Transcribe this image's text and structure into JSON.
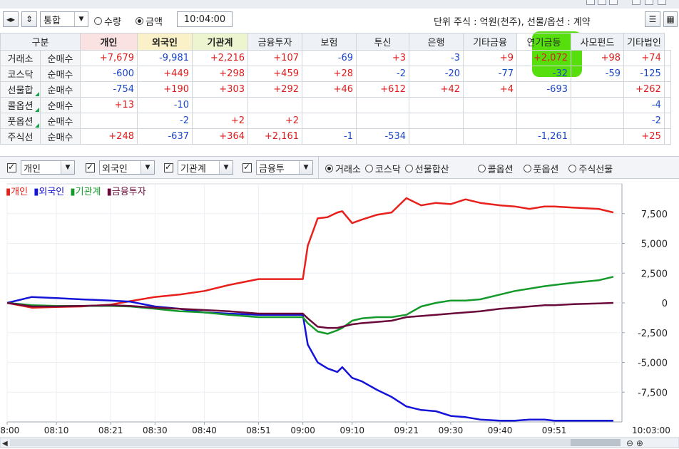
{
  "toolbar": {
    "market_select": "통합",
    "radio_quantity": "수량",
    "radio_amount": "금액",
    "time": "10:04:00",
    "unit_text": "단위 주식 : 억원(천주), 선물/옵션 : 계약"
  },
  "table": {
    "headers": [
      "구분",
      "개인",
      "외국인",
      "기관계",
      "금융투자",
      "보험",
      "투신",
      "은행",
      "기타금융",
      "연기금등",
      "사모펀드",
      "기타법인"
    ],
    "rows": [
      {
        "market": "거래소",
        "type": "순매수",
        "values": [
          "+7,679",
          "-9,981",
          "+2,216",
          "+107",
          "-69",
          "+3",
          "-3",
          "+9",
          "+2,072",
          "+98",
          "+74"
        ]
      },
      {
        "market": "코스닥",
        "type": "순매수",
        "values": [
          "-600",
          "+449",
          "+298",
          "+459",
          "+28",
          "-2",
          "-20",
          "-77",
          "-32",
          "-59",
          "-125"
        ]
      },
      {
        "market": "선물합",
        "type": "순매수",
        "values": [
          "-754",
          "+190",
          "+303",
          "+292",
          "+46",
          "+612",
          "+42",
          "+4",
          "-693",
          "",
          "+262"
        ]
      },
      {
        "market": "콜옵션",
        "type": "순매수",
        "values": [
          "+13",
          "-10",
          "",
          "",
          "",
          "",
          "",
          "",
          "",
          "",
          "-4"
        ]
      },
      {
        "market": "풋옵션",
        "type": "순매수",
        "values": [
          "",
          "-2",
          "+2",
          "+2",
          "",
          "",
          "",
          "",
          "",
          "",
          "-2"
        ]
      },
      {
        "market": "주식선",
        "type": "순매수",
        "values": [
          "+248",
          "-637",
          "+364",
          "+2,161",
          "-1",
          "-534",
          "",
          "",
          "-1,261",
          "",
          "+25"
        ]
      }
    ]
  },
  "filters": {
    "dropdowns": [
      "개인",
      "외국인",
      "기관계",
      "금융투"
    ],
    "radios": [
      "거래소",
      "코스닥",
      "선물합산",
      "콜옵션",
      "풋옵션",
      "주식선물"
    ]
  },
  "legend": [
    "개인",
    "외국인",
    "기관계",
    "금융투자"
  ],
  "colors": {
    "individual": "#e8201c",
    "foreign": "#1414d8",
    "institution": "#149a2a",
    "finance": "#6a0a3a",
    "highlight": "#4ddd00"
  },
  "chart_data": {
    "type": "line",
    "x": [
      "08:00",
      "08:05",
      "08:10",
      "08:15",
      "08:21",
      "08:25",
      "08:30",
      "08:35",
      "08:40",
      "08:45",
      "08:51",
      "08:55",
      "09:00",
      "09:01",
      "09:03",
      "09:05",
      "09:07",
      "09:08",
      "09:10",
      "09:12",
      "09:15",
      "09:18",
      "09:21",
      "09:24",
      "09:27",
      "09:30",
      "09:33",
      "09:36",
      "09:40",
      "09:43",
      "09:46",
      "09:49",
      "09:51",
      "09:55",
      "10:00",
      "10:03"
    ],
    "series": [
      {
        "name": "개인",
        "values": [
          0,
          -400,
          -350,
          -300,
          -150,
          150,
          500,
          700,
          1000,
          1500,
          2000,
          2000,
          2000,
          4800,
          7100,
          7200,
          7600,
          7700,
          6700,
          7000,
          7400,
          7600,
          8800,
          8200,
          8400,
          8300,
          8700,
          8400,
          8200,
          8100,
          7900,
          8100,
          8100,
          8000,
          7900,
          7600
        ]
      },
      {
        "name": "외국인",
        "values": [
          0,
          500,
          400,
          300,
          200,
          100,
          -300,
          -500,
          -800,
          -900,
          -1000,
          -1000,
          -1000,
          -3500,
          -5000,
          -5500,
          -5800,
          -5400,
          -6300,
          -6600,
          -7300,
          -7900,
          -8700,
          -9000,
          -9100,
          -9500,
          -9600,
          -9800,
          -9900,
          -9900,
          -9800,
          -9800,
          -9900,
          -9900,
          -9900,
          -9900
        ]
      },
      {
        "name": "기관계",
        "values": [
          0,
          -200,
          -250,
          -250,
          -250,
          -300,
          -500,
          -700,
          -800,
          -1000,
          -1200,
          -1200,
          -1200,
          -1700,
          -2400,
          -2600,
          -2300,
          -2100,
          -1500,
          -1300,
          -1200,
          -1200,
          -1000,
          -300,
          0,
          200,
          200,
          300,
          700,
          1000,
          1200,
          1400,
          1500,
          1700,
          1900,
          2200
        ]
      },
      {
        "name": "금융투자",
        "values": [
          0,
          -300,
          -300,
          -250,
          -200,
          -250,
          -400,
          -500,
          -600,
          -700,
          -900,
          -900,
          -900,
          -1300,
          -2000,
          -2100,
          -2100,
          -2000,
          -1800,
          -1700,
          -1600,
          -1500,
          -1200,
          -1100,
          -1000,
          -900,
          -800,
          -700,
          -500,
          -400,
          -300,
          -200,
          -200,
          -100,
          -50,
          0
        ]
      }
    ],
    "y_ticks": [
      "7,500",
      "5,000",
      "2,500",
      "0",
      "-2,500",
      "-5,000",
      "-7,500"
    ],
    "x_ticks": [
      "08:00",
      "08:10",
      "08:21",
      "08:30",
      "08:40",
      "08:51",
      "09:00",
      "09:10",
      "09:21",
      "09:30",
      "09:40",
      "09:51"
    ],
    "x_end_label": "10:03:00",
    "ylim": [
      -10000,
      10000
    ],
    "grid": true,
    "legend_position": "top-left"
  }
}
